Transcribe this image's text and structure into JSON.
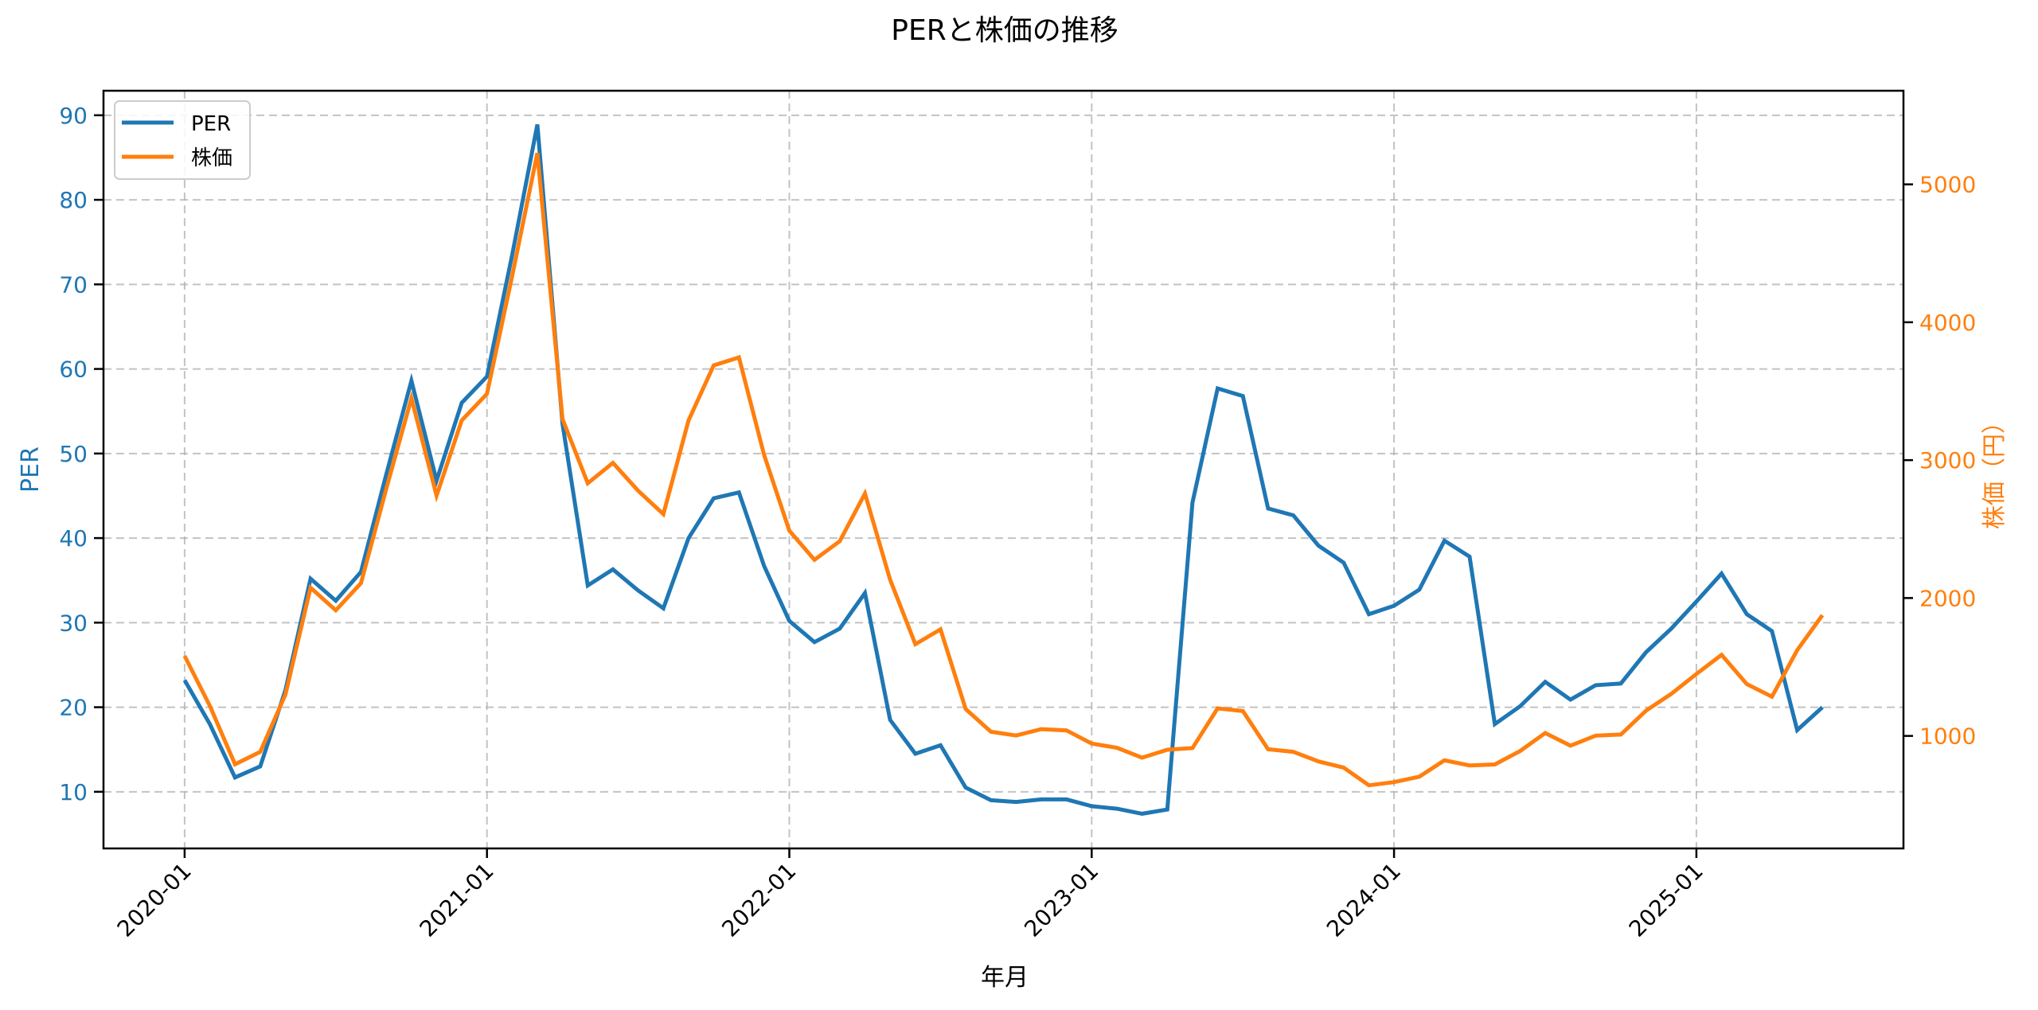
{
  "chart_data": {
    "type": "line",
    "title": "PERと株価の推移",
    "xlabel": "年月",
    "ylabel": "PER",
    "ylabel_right": "株価（円）",
    "x_tick_labels": [
      "2020-01",
      "2021-01",
      "2022-01",
      "2023-01",
      "2024-01",
      "2025-01"
    ],
    "y_ticks_left": [
      10,
      20,
      30,
      40,
      50,
      60,
      70,
      80,
      90
    ],
    "y_ticks_right": [
      1000,
      2000,
      3000,
      4000,
      5000
    ],
    "ylim_left": [
      3.3,
      92.9
    ],
    "ylim_right": [
      184,
      5679
    ],
    "grid": true,
    "legend_position": "upper left",
    "x": [
      "2020-01",
      "2020-02",
      "2020-03",
      "2020-04",
      "2020-05",
      "2020-06",
      "2020-07",
      "2020-08",
      "2020-09",
      "2020-10",
      "2020-11",
      "2020-12",
      "2021-01",
      "2021-02",
      "2021-03",
      "2021-04",
      "2021-05",
      "2021-06",
      "2021-07",
      "2021-08",
      "2021-09",
      "2021-10",
      "2021-11",
      "2021-12",
      "2022-01",
      "2022-02",
      "2022-03",
      "2022-04",
      "2022-05",
      "2022-06",
      "2022-07",
      "2022-08",
      "2022-09",
      "2022-10",
      "2022-11",
      "2022-12",
      "2023-01",
      "2023-02",
      "2023-03",
      "2023-04",
      "2023-05",
      "2023-06",
      "2023-07",
      "2023-08",
      "2023-09",
      "2023-10",
      "2023-11",
      "2023-12",
      "2024-01",
      "2024-02",
      "2024-03",
      "2024-04",
      "2024-05",
      "2024-06",
      "2024-07",
      "2024-08",
      "2024-09",
      "2024-10",
      "2024-11",
      "2024-12",
      "2025-01",
      "2025-02",
      "2025-03",
      "2025-04",
      "2025-05",
      "2025-06"
    ],
    "series": [
      {
        "name": "PER",
        "axis": "left",
        "color": "#1f77b4",
        "values": [
          23.2,
          18.0,
          11.7,
          13.0,
          22.0,
          35.2,
          32.6,
          36.0,
          47.5,
          58.6,
          46.8,
          56.0,
          59.1,
          73.5,
          88.9,
          53.5,
          34.4,
          36.3,
          33.8,
          31.7,
          40.0,
          44.7,
          45.4,
          36.7,
          30.2,
          27.7,
          29.3,
          33.5,
          18.5,
          14.5,
          15.5,
          10.5,
          9.0,
          8.8,
          9.1,
          9.1,
          8.3,
          8.0,
          7.4,
          7.9,
          44.2,
          57.7,
          56.8,
          43.5,
          42.7,
          39.1,
          37.1,
          31.0,
          32.0,
          33.9,
          39.7,
          37.8,
          18.0,
          20.1,
          23.0,
          20.9,
          22.6,
          22.8,
          26.5,
          29.3,
          32.5,
          35.8,
          31.0,
          29.0,
          17.3,
          20.0
        ]
      },
      {
        "name": "株価",
        "axis": "right",
        "color": "#ff7f0e",
        "values": [
          1580,
          1218,
          794,
          885,
          1299,
          2075,
          1911,
          2108,
          2790,
          3448,
          2743,
          3288,
          3481,
          4337,
          5227,
          3298,
          2832,
          2980,
          2778,
          2608,
          3288,
          3687,
          3745,
          3038,
          2489,
          2277,
          2412,
          2758,
          2133,
          1665,
          1773,
          1195,
          1030,
          1003,
          1049,
          1040,
          945,
          914,
          842,
          900,
          912,
          1200,
          1180,
          903,
          885,
          815,
          770,
          642,
          665,
          704,
          823,
          786,
          793,
          890,
          1021,
          929,
          1002,
          1010,
          1183,
          1305,
          1449,
          1588,
          1376,
          1285,
          1622,
          1876
        ]
      }
    ]
  },
  "colors": {
    "per": "#1f77b4",
    "price": "#ff7f0e",
    "grid": "#b0b0b0",
    "axis": "#000000"
  }
}
